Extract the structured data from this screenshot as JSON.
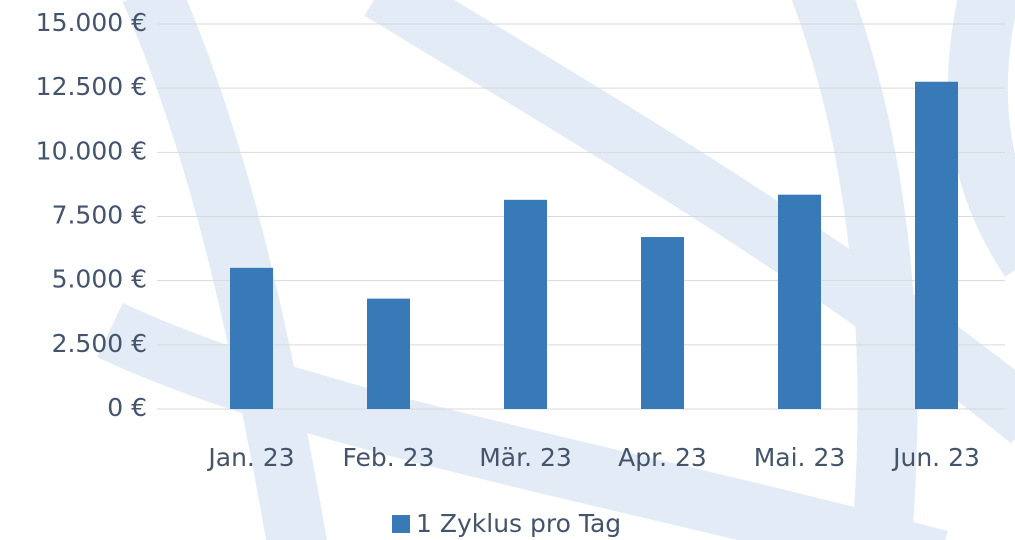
{
  "chart_data": {
    "type": "bar",
    "categories": [
      "Jan. 23",
      "Feb. 23",
      "Mär. 23",
      "Apr. 23",
      "Mai. 23",
      "Jun. 23"
    ],
    "series": [
      {
        "name": "1 Zyklus pro Tag",
        "color": "#377ab7",
        "values": [
          5500,
          4300,
          8150,
          6700,
          8350,
          12750
        ]
      }
    ],
    "ylim": [
      0,
      15000
    ],
    "yticks": [
      {
        "value": 0,
        "label": "0 €"
      },
      {
        "value": 2500,
        "label": "2.500 €"
      },
      {
        "value": 5000,
        "label": "5.000 €"
      },
      {
        "value": 7500,
        "label": "7.500 €"
      },
      {
        "value": 10000,
        "label": "10.000 €"
      },
      {
        "value": 12500,
        "label": "12.500 €"
      },
      {
        "value": 15000,
        "label": "15.000 €"
      }
    ],
    "grid": true,
    "legend": "bottom"
  }
}
